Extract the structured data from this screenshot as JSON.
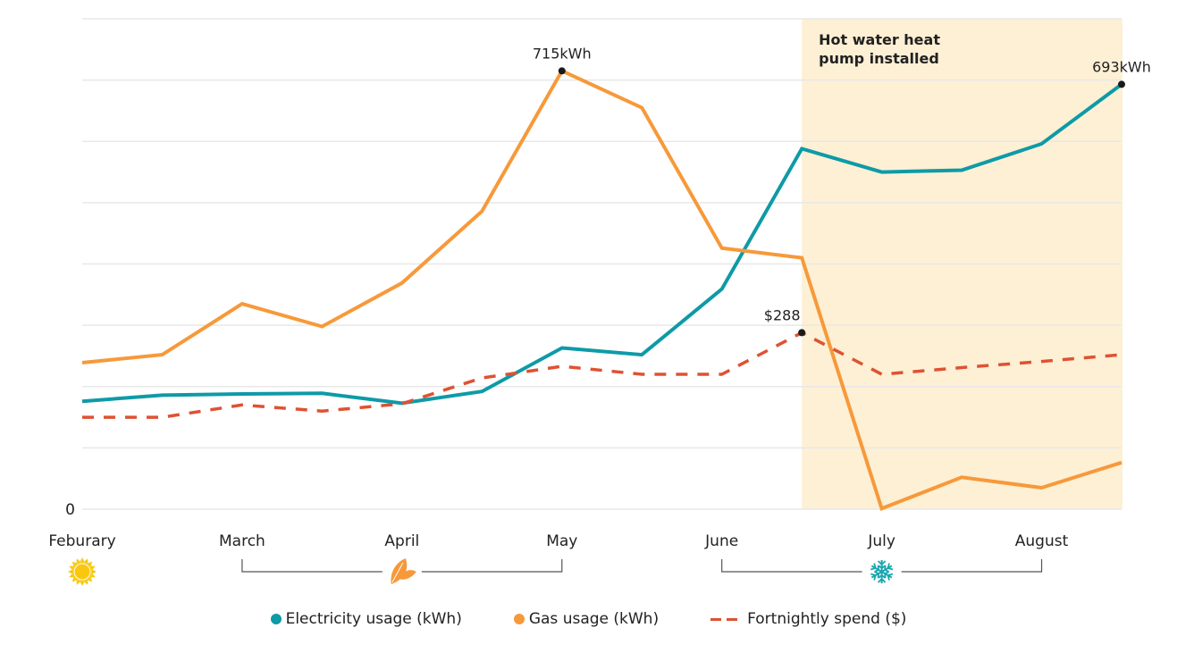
{
  "chart_data": {
    "type": "line",
    "title": "",
    "xlabel": "",
    "ylabel": "",
    "ylim": [
      0,
      800
    ],
    "y_gridlines": [
      0,
      100,
      200,
      300,
      400,
      500,
      600,
      700,
      800
    ],
    "y_tick_labels": [
      {
        "value": 0,
        "label": "0"
      }
    ],
    "x_points": 14,
    "month_labels": [
      {
        "label": "Feburary",
        "index": 0
      },
      {
        "label": "March",
        "index": 2
      },
      {
        "label": "April",
        "index": 4
      },
      {
        "label": "May",
        "index": 6
      },
      {
        "label": "June",
        "index": 8
      },
      {
        "label": "July",
        "index": 10
      },
      {
        "label": "August",
        "index": 12
      }
    ],
    "series": [
      {
        "name": "Electricity usage (kWh)",
        "key": "electricity",
        "color": "#0E9AA7",
        "style": "solid",
        "values": [
          176,
          186,
          188,
          189,
          173,
          192,
          263,
          252,
          359,
          588,
          550,
          553,
          596,
          693
        ]
      },
      {
        "name": "Gas usage (kWh)",
        "key": "gas",
        "color": "#F7993A",
        "style": "solid",
        "values": [
          239,
          252,
          335,
          298,
          369,
          486,
          715,
          655,
          426,
          410,
          1,
          52,
          35,
          76
        ]
      },
      {
        "name": "Fortnightly spend ($)",
        "key": "spend",
        "color": "#DE5233",
        "style": "dashed",
        "values": [
          150,
          150,
          170,
          160,
          172,
          214,
          233,
          220,
          220,
          288,
          220,
          231,
          241,
          252
        ]
      }
    ],
    "annotations": [
      {
        "text": "715kWh",
        "series": "gas",
        "index": 6
      },
      {
        "text": "693kWh",
        "series": "electricity",
        "index": 13
      },
      {
        "text": "$288",
        "series": "spend",
        "index": 9
      }
    ],
    "shaded_region": {
      "from_index": 9,
      "to_index": 13,
      "color": "#FDF0D5",
      "label_lines": [
        "Hot water heat",
        "pump installed"
      ]
    },
    "seasons": [
      {
        "name": "summer",
        "icon": "sun-icon",
        "color": "#F9C80E",
        "at_index": 0
      },
      {
        "name": "autumn",
        "icon": "leaves-icon",
        "color": "#F7993A",
        "from_index": 2,
        "to_index": 6,
        "center_index": 4
      },
      {
        "name": "winter",
        "icon": "snowflake-icon",
        "color": "#1AA6B0",
        "from_index": 8,
        "to_index": 12,
        "center_index": 10
      }
    ],
    "legend_position": "bottom",
    "grid": true
  },
  "legend": {
    "electricity": "Electricity usage (kWh)",
    "gas": "Gas usage (kWh)",
    "spend": "Fortnightly spend ($)"
  },
  "colors": {
    "electricity": "#0E9AA7",
    "gas": "#F7993A",
    "spend": "#DE5233",
    "grid": "#E8E8E8",
    "shade": "#FDF0D5",
    "bracket": "#555555"
  }
}
